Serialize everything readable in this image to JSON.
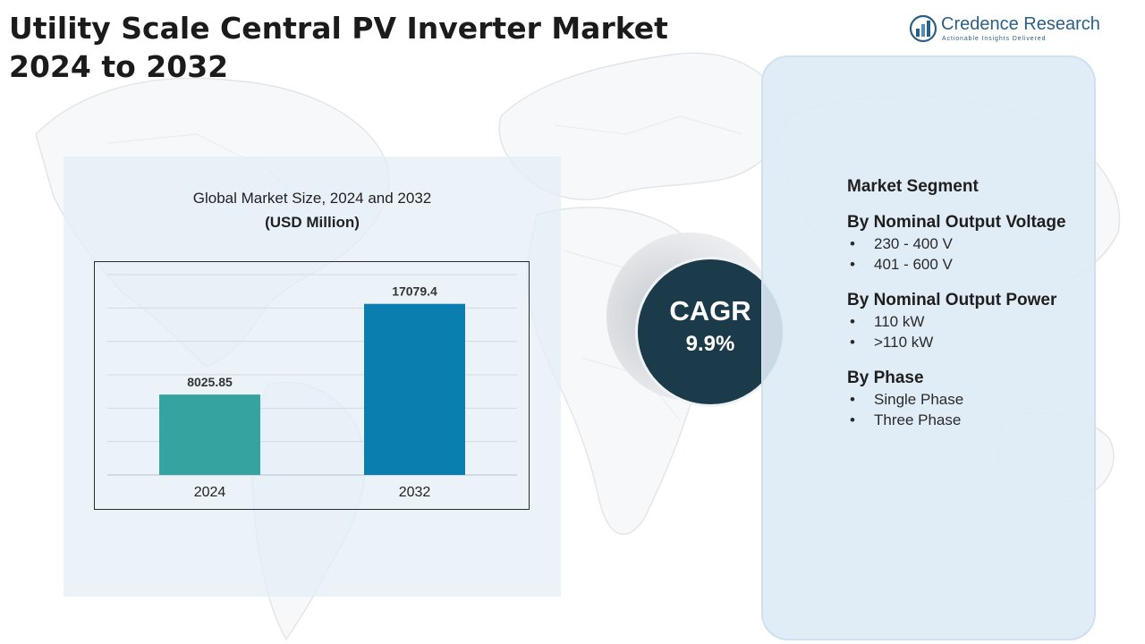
{
  "title_lines": [
    "Utility Scale Central PV Inverter Market",
    "2024 to 2032"
  ],
  "logo": {
    "name": "Credence Research",
    "tagline": "Actionable Insights Delivered",
    "icon": "bar-chart-logo-icon"
  },
  "chart": {
    "title": "Global Market Size, 2024 and 2032",
    "subtitle": "(USD Million)"
  },
  "chart_data": {
    "type": "bar",
    "categories": [
      "2024",
      "2032"
    ],
    "values": [
      8025.85,
      17079.4
    ],
    "data_labels": [
      "8025.85",
      "17079.4"
    ],
    "ylim": [
      0,
      20000
    ],
    "grid": true,
    "bar_colors": [
      "#35a3a0",
      "#0a7eae"
    ]
  },
  "cagr": {
    "label": "CAGR",
    "value": "9.9%"
  },
  "segments": {
    "heading": "Market Segment",
    "groups": [
      {
        "title": "By Nominal Output Voltage",
        "items": [
          "230 - 400 V",
          "401 - 600 V"
        ]
      },
      {
        "title": "By Nominal Output Power",
        "items": [
          "110 kW",
          ">110 kW"
        ]
      },
      {
        "title": "By Phase",
        "items": [
          "Single Phase",
          "Three Phase"
        ]
      }
    ]
  },
  "colors": {
    "cagr_circle": "#1b3b4b",
    "panel_bg": "#e3eef7",
    "map_stroke": "#dfe5ea",
    "logo": "#2a5f86"
  }
}
